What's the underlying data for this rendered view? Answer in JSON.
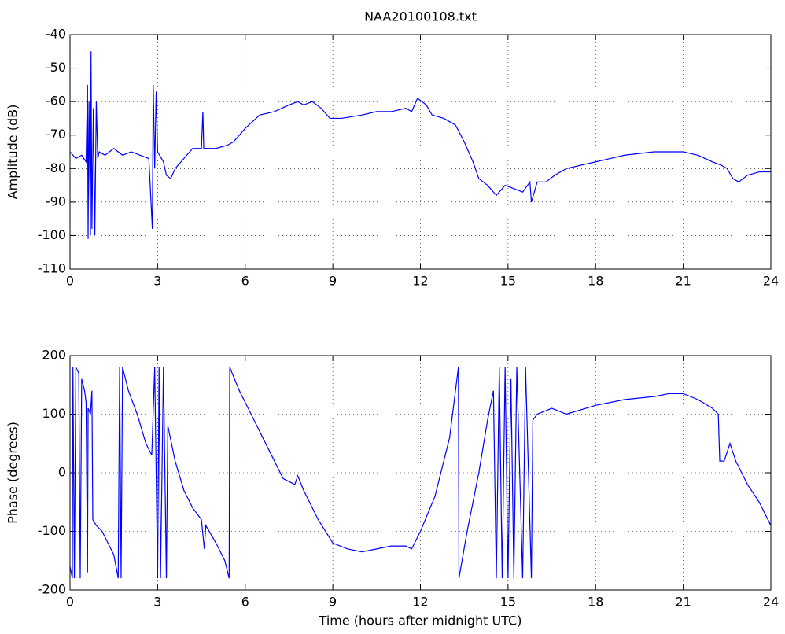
{
  "chart_data": [
    {
      "type": "line",
      "title": "NAA20100108.txt",
      "ylabel": "Amplitude (dB)",
      "xlim": [
        0,
        24
      ],
      "xticks": [
        0,
        3,
        6,
        9,
        12,
        15,
        18,
        21,
        24
      ],
      "ylim": [
        -110,
        -40
      ],
      "yticks": [
        -110,
        -100,
        -90,
        -80,
        -70,
        -60,
        -50,
        -40
      ],
      "grid": true,
      "x": [
        0,
        0.2,
        0.4,
        0.55,
        0.6,
        0.62,
        0.65,
        0.7,
        0.72,
        0.75,
        0.8,
        0.85,
        0.9,
        0.95,
        1.0,
        1.2,
        1.5,
        1.8,
        2.1,
        2.4,
        2.7,
        2.82,
        2.85,
        2.9,
        2.95,
        3.0,
        3.2,
        3.3,
        3.45,
        3.6,
        3.9,
        4.2,
        4.5,
        4.55,
        4.58,
        5.0,
        5.4,
        5.6,
        6.0,
        6.5,
        7.0,
        7.5,
        7.8,
        8.0,
        8.3,
        8.6,
        8.9,
        9.3,
        10,
        10.5,
        11,
        11.5,
        11.7,
        11.9,
        12.2,
        12.4,
        12.8,
        13.2,
        13.5,
        13.8,
        14.0,
        14.3,
        14.6,
        14.9,
        15.2,
        15.5,
        15.75,
        15.8,
        16,
        16.3,
        16.6,
        17,
        18,
        19,
        20,
        21,
        21.5,
        22,
        22.3,
        22.5,
        22.7,
        22.9,
        23.2,
        23.6,
        24
      ],
      "series": [
        {
          "color": "#0000ff",
          "values": [
            -75,
            -77,
            -76,
            -78,
            -55,
            -101,
            -60,
            -100,
            -45,
            -98,
            -62,
            -100,
            -60,
            -77,
            -75,
            -76,
            -74,
            -76,
            -75,
            -76,
            -77,
            -98,
            -55,
            -80,
            -57,
            -75,
            -78,
            -82,
            -83,
            -80,
            -77,
            -74,
            -74,
            -63,
            -74,
            -74,
            -73,
            -72,
            -68,
            -64,
            -63,
            -61,
            -60,
            -61,
            -60,
            -62,
            -65,
            -65,
            -64,
            -63,
            -63,
            -62,
            -63,
            -59,
            -61,
            -64,
            -65,
            -67,
            -72,
            -78,
            -83,
            -85,
            -88,
            -85,
            -86,
            -87,
            -84,
            -90,
            -84,
            -84,
            -82,
            -80,
            -78,
            -76,
            -75,
            -75,
            -76,
            -78,
            -79,
            -80,
            -83,
            -84,
            -82,
            -81,
            -81
          ]
        }
      ]
    },
    {
      "type": "line",
      "xlabel": "Time (hours after midnight UTC)",
      "ylabel": "Phase (degrees)",
      "xlim": [
        0,
        24
      ],
      "xticks": [
        0,
        3,
        6,
        9,
        12,
        15,
        18,
        21,
        24
      ],
      "ylim": [
        -200,
        200
      ],
      "yticks": [
        -200,
        -100,
        0,
        100,
        200
      ],
      "grid": true,
      "x": [
        0,
        0.08,
        0.1,
        0.15,
        0.2,
        0.3,
        0.35,
        0.4,
        0.5,
        0.55,
        0.6,
        0.62,
        0.7,
        0.75,
        0.78,
        0.9,
        1.1,
        1.3,
        1.5,
        1.65,
        1.7,
        1.75,
        1.8,
        2.0,
        2.3,
        2.6,
        2.8,
        2.9,
        3.0,
        3.05,
        3.1,
        3.2,
        3.3,
        3.35,
        3.6,
        3.9,
        4.2,
        4.5,
        4.6,
        4.65,
        5.0,
        5.3,
        5.45,
        5.47,
        5.8,
        6.2,
        6.8,
        7.3,
        7.7,
        7.8,
        8.0,
        8.5,
        9.0,
        9.5,
        10.0,
        10.5,
        11,
        11.5,
        11.7,
        12,
        12.5,
        13,
        13.3,
        13.32,
        13.6,
        14,
        14.3,
        14.5,
        14.6,
        14.7,
        14.8,
        14.9,
        15,
        15.1,
        15.2,
        15.3,
        15.5,
        15.6,
        15.8,
        15.85,
        16,
        16.5,
        17,
        18,
        19,
        20,
        20.5,
        21,
        21.5,
        22,
        22.2,
        22.25,
        22.4,
        22.6,
        22.8,
        23.2,
        23.6,
        24
      ],
      "series": [
        {
          "color": "#0000ff",
          "values": [
            -160,
            -180,
            180,
            -180,
            180,
            170,
            -180,
            160,
            140,
            120,
            -170,
            110,
            100,
            140,
            -80,
            -90,
            -100,
            -120,
            -140,
            -180,
            180,
            -180,
            180,
            140,
            100,
            50,
            30,
            180,
            -180,
            180,
            -180,
            180,
            -180,
            80,
            20,
            -30,
            -60,
            -80,
            -130,
            -90,
            -120,
            -150,
            -180,
            180,
            140,
            100,
            40,
            -10,
            -20,
            -5,
            -30,
            -80,
            -120,
            -130,
            -135,
            -130,
            -125,
            -125,
            -130,
            -100,
            -40,
            60,
            180,
            -180,
            -100,
            0,
            90,
            140,
            -180,
            180,
            -180,
            180,
            -180,
            160,
            -180,
            180,
            -180,
            180,
            -180,
            90,
            100,
            110,
            100,
            115,
            125,
            130,
            135,
            135,
            125,
            110,
            100,
            20,
            20,
            50,
            20,
            -20,
            -50,
            -90
          ]
        }
      ]
    }
  ]
}
